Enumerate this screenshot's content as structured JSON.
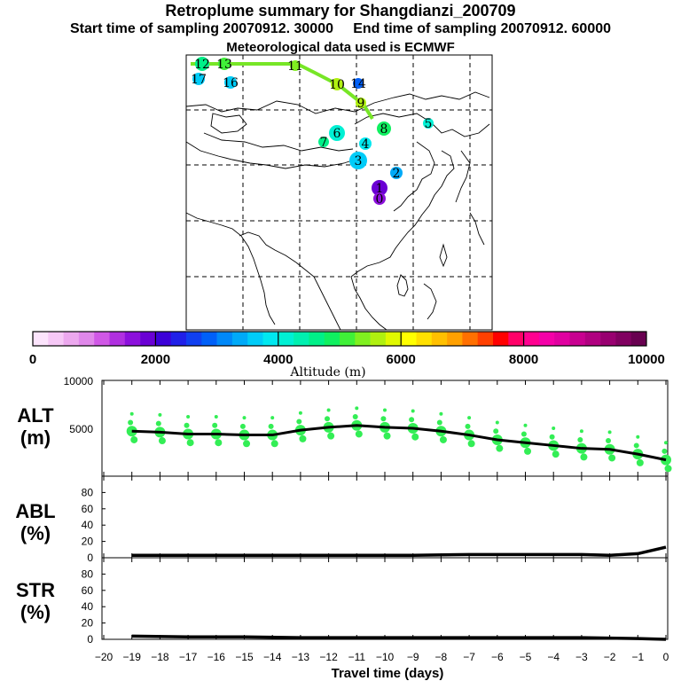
{
  "header": {
    "title": "Retroplume summary for Shangdianzi_200709",
    "subtitle": "Start time of sampling 20070912. 30000     End time of sampling 20070912. 60000",
    "met": "Meteorological data used is ECMWF"
  },
  "chart_data": [
    {
      "type": "map",
      "title": "Retroplume trajectory map",
      "centroid_markers": [
        {
          "label": "12",
          "value": 4500
        },
        {
          "label": "13",
          "value": 5200
        },
        {
          "label": "11",
          "value": 5400
        },
        {
          "label": "10",
          "value": 5600
        },
        {
          "label": "9",
          "value": 5500
        },
        {
          "label": "16",
          "value": 3500
        },
        {
          "label": "17",
          "value": 3600
        },
        {
          "label": "14",
          "value": 2900
        },
        {
          "label": "8",
          "value": 4800
        },
        {
          "label": "7",
          "value": 4600
        },
        {
          "label": "6",
          "value": 4200
        },
        {
          "label": "5",
          "value": 4000
        },
        {
          "label": "4",
          "value": 3900
        },
        {
          "label": "3",
          "value": 3500
        },
        {
          "label": "2",
          "value": 3300
        },
        {
          "label": "1",
          "value": 1800
        },
        {
          "label": "0",
          "value": 1600
        }
      ],
      "colorbar": {
        "label": "Altitude (m)",
        "ticks": [
          "0",
          "2000",
          "4000",
          "6000",
          "8000",
          "10000"
        ],
        "range": [
          0,
          10000
        ],
        "colors": [
          "#fce4fc",
          "#f6c8f6",
          "#eca8ee",
          "#e088ea",
          "#d058e6",
          "#b030e0",
          "#8c10dc",
          "#6a00d4",
          "#3c00d8",
          "#2020e8",
          "#1040f0",
          "#0060f8",
          "#0088f8",
          "#00aaf8",
          "#00ccf8",
          "#00e8f0",
          "#00f0d4",
          "#00f0b0",
          "#00f088",
          "#10f060",
          "#40f038",
          "#80f020",
          "#b0f010",
          "#e0f800",
          "#ffff00",
          "#ffe000",
          "#ffc000",
          "#ffa000",
          "#ff7000",
          "#ff4000",
          "#ff0000",
          "#ff0068",
          "#ff0090",
          "#f400a8",
          "#e000a0",
          "#c80090",
          "#b00080",
          "#980070",
          "#800060",
          "#680050"
        ]
      }
    },
    {
      "type": "line+scatter",
      "title": "ALT",
      "ylabel_line1": "ALT",
      "ylabel_line2": "(m)",
      "xlabel": "Travel time (days)",
      "xlim": [
        -20,
        0
      ],
      "ylim": [
        0,
        10000
      ],
      "yticks": [
        "5000",
        "10000"
      ],
      "x": [
        -19,
        -18,
        -17,
        -16,
        -15,
        -14,
        -13,
        -12,
        -11,
        -10,
        -9,
        -8,
        -7,
        -6,
        -5,
        -4,
        -3,
        -2,
        -1,
        0
      ],
      "values": [
        4700,
        4600,
        4400,
        4400,
        4300,
        4300,
        4800,
        5100,
        5300,
        5100,
        5000,
        4700,
        4300,
        3800,
        3500,
        3200,
        2900,
        2800,
        2300,
        1700
      ]
    },
    {
      "type": "line",
      "title": "ABL",
      "ylabel_line1": "ABL",
      "ylabel_line2": "(%)",
      "xlim": [
        -20,
        0
      ],
      "ylim": [
        0,
        100
      ],
      "yticks": [
        "0",
        "20",
        "40",
        "60",
        "80"
      ],
      "x": [
        -19,
        -17,
        -15,
        -13,
        -11,
        -9,
        -7,
        -5,
        -3,
        -2,
        -1,
        0
      ],
      "values": [
        3,
        3,
        3,
        3,
        3,
        3,
        4,
        4,
        4,
        3,
        5,
        13
      ]
    },
    {
      "type": "line",
      "title": "STR",
      "ylabel_line1": "STR",
      "ylabel_line2": "(%)",
      "xlim": [
        -20,
        0
      ],
      "ylim": [
        0,
        100
      ],
      "yticks": [
        "0",
        "20",
        "40",
        "60",
        "80"
      ],
      "xticks": [
        "−20",
        "−19",
        "−18",
        "−17",
        "−16",
        "−15",
        "−14",
        "−13",
        "−12",
        "−11",
        "−10",
        "−9",
        "−8",
        "−7",
        "−6",
        "−5",
        "−4",
        "−3",
        "−2",
        "−1",
        "0"
      ],
      "x": [
        -19,
        -17,
        -15,
        -13,
        -11,
        -9,
        -7,
        -5,
        -3,
        -1,
        0
      ],
      "values": [
        4,
        3,
        3,
        2,
        2,
        2,
        2,
        2,
        2,
        1,
        0
      ]
    }
  ]
}
